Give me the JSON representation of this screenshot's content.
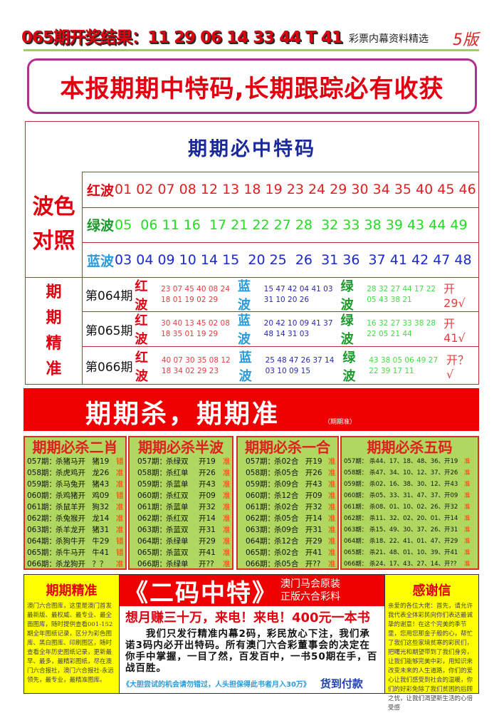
{
  "header": {
    "result": "065期开奖结果：11 29 06 14 33 44 T 41",
    "subtitle": "彩票内幕资料精选",
    "edition": "5版"
  },
  "slogan": "本报期期中特码,长期跟踪必有收获",
  "main": {
    "title": "期期必中特码",
    "wave_label": "波色对照",
    "waves": [
      {
        "label": "红波",
        "numbers": "01 02 07 08 12 13 18 19 23 24 29 30 34 35 40 45 46",
        "label_color": "#e00010",
        "color": "#e02020"
      },
      {
        "label": "绿波",
        "numbers": "05  06 11 16  17 21 22 27 28  32 33 38 39 43 44 49",
        "label_color": "#1a9a2a",
        "color": "#22dd22"
      },
      {
        "label": "蓝波",
        "numbers": "03 04 09 10 14 15  20 25  26  31 36  37 41 42 47 48",
        "label_color": "#2a9ad8",
        "color": "#1a2ad0"
      }
    ],
    "pred_label": "期期精准",
    "predictions": [
      {
        "period": "第064期",
        "red_label": "红波",
        "red": [
          "23 07 45 40 08 24",
          "18 01 19 02 29"
        ],
        "blue_label": "蓝波",
        "blue": [
          "15 47 42 04 41 03",
          "31 10 20 26"
        ],
        "green_label": "绿波",
        "green": [
          "28 32 27 44 17 22",
          "05 43 38 21"
        ],
        "open": "开29√"
      },
      {
        "period": "第065期",
        "red_label": "红波",
        "red": [
          "30 40 13 45 02 08",
          "18 35 01 19 29"
        ],
        "blue_label": "蓝波",
        "blue": [
          "20 42 10 09 41 37",
          "48 14 31 03"
        ],
        "green_label": "绿波",
        "green": [
          "16 32 27 33 38 28",
          "22 05 21 44"
        ],
        "open": "开41√"
      },
      {
        "period": "第066期",
        "red_label": "红波",
        "red": [
          "40 07 30 35 08 12",
          "18 34 02 29 23"
        ],
        "blue_label": "蓝波",
        "blue": [
          "25 48 47 26 37 14",
          "03 10 09 15"
        ],
        "green_label": "绿波",
        "green": [
          "43 38 05 06 49 27",
          "22 39 17 11"
        ],
        "open": "开？√"
      }
    ]
  },
  "banner": {
    "title": "期期杀，期期准",
    "small": "（期期准）",
    "badges": [
      "杀",
      "杀",
      "杀"
    ]
  },
  "boxes": [
    {
      "title": "期期必杀二肖",
      "rows": [
        [
          "057期：",
          "杀猪马开",
          "猪19",
          "错"
        ],
        [
          "058期：",
          "杀虎鸡开",
          "龙26",
          "准"
        ],
        [
          "059期：",
          "杀马兔开",
          "猪43",
          "准"
        ],
        [
          "060期：",
          "杀鸡猪开",
          "鸡09",
          "错"
        ],
        [
          "061期：",
          "杀鼠羊开",
          "狗32",
          "准"
        ],
        [
          "062期：",
          "杀兔猴开",
          "龙14",
          "准"
        ],
        [
          "063期：",
          "杀羊龙开",
          "猪31",
          "准"
        ],
        [
          "064期：",
          "杀狗牛开",
          "牛29",
          "错"
        ],
        [
          "065期：",
          "杀牛马开",
          "牛41",
          "错"
        ],
        [
          "066期：",
          "杀龙狗开",
          "？？",
          "准"
        ]
      ]
    },
    {
      "title": "期期必杀半波",
      "rows": [
        [
          "057期：",
          "杀绿双",
          "开19",
          "准"
        ],
        [
          "058期：",
          "杀红单",
          "开26",
          "准"
        ],
        [
          "059期：",
          "杀蓝单",
          "开43",
          "准"
        ],
        [
          "060期：",
          "杀红双",
          "开09",
          "准"
        ],
        [
          "061期：",
          "杀蓝单",
          "开32",
          "准"
        ],
        [
          "062期：",
          "杀红双",
          "开14",
          "准"
        ],
        [
          "063期：",
          "杀蓝双",
          "开31",
          "准"
        ],
        [
          "064期：",
          "杀绿单",
          "开29",
          "准"
        ],
        [
          "065期：",
          "杀蓝双",
          "开41",
          "准"
        ],
        [
          "066期：",
          "杀绿单",
          "开??",
          "准"
        ]
      ]
    },
    {
      "title": "期期必杀一合",
      "rows": [
        [
          "057期：",
          "杀02合",
          "开19",
          "准"
        ],
        [
          "058期：",
          "杀05合",
          "开26",
          "准"
        ],
        [
          "059期：",
          "杀09合",
          "开43",
          "准"
        ],
        [
          "060期：",
          "杀12合",
          "开09",
          "准"
        ],
        [
          "061期：",
          "杀02合",
          "开32",
          "准"
        ],
        [
          "062期：",
          "杀05合",
          "开14",
          "准"
        ],
        [
          "063期：",
          "杀09合",
          "开31",
          "准"
        ],
        [
          "064期：",
          "杀12合",
          "开29",
          "准"
        ],
        [
          "065期：",
          "杀02合",
          "开41",
          "准"
        ],
        [
          "066期：",
          "杀05合",
          "开??",
          "准"
        ]
      ]
    },
    {
      "title": "期期必杀五码",
      "rows": [
        [
          "057期：",
          "杀44、17、18、48、36、",
          "开19",
          "准"
        ],
        [
          "058期：",
          "杀47、34、10、12、37、",
          "开26",
          "准"
        ],
        [
          "059期：",
          "杀02、16、38、30、12、",
          "开43",
          "准"
        ],
        [
          "060期：",
          "杀05、33、31、47、37、",
          "开09",
          "准"
        ],
        [
          "061期：",
          "杀08、01、10、02、26、",
          "开32",
          "准"
        ],
        [
          "062期：",
          "杀11、32、02、20、01、",
          "开14",
          "准"
        ],
        [
          "063期：",
          "杀15、49、30、37、26、",
          "开31",
          "准"
        ],
        [
          "064期：",
          "杀18、22、41、01、47、",
          "开29",
          "准"
        ],
        [
          "065期：",
          "杀21、48、01、10、39、",
          "开41",
          "准"
        ],
        [
          "066期：",
          "杀24、17、43、27、14、",
          "开??",
          "准"
        ]
      ]
    }
  ],
  "bottom": {
    "left": {
      "title": "期期精准",
      "text": "澳门六合图库，这里是澳门首发最新版、最权威、最专业、最全面图库，随时提供查看001-152期全年图纸记录，区分为彩色图库、黑白图库、印刷图区，随时查看全年历史图纸记录，更新最早、最多，最精彩图纸，尽在澳门六合报社，澳门六合报社-永远领先，最专业，最精准图库。"
    },
    "middle": {
      "title": "《二码中特》",
      "side1": "澳门马会原装",
      "side2": "正版六合彩料",
      "sub": "想月赚三十万，来电！来电！400元一本书",
      "body": "　　我们只发行精准内幕2码，彩民放心下注，我们承诺3码内必开出特码。所有澳门六合彩董事会的决定在你手中掌握，一目了然，百发百中，一书50期在手，百战百胜。",
      "note": "《大胆尝试的机会请勿错过，人头担保得此书者月入30万》",
      "cod": "货到付款"
    },
    "right": {
      "title": "感谢信",
      "text": "亲爱的各位大佬：首先，请允许我代表全体彩民向你们表达最诚挚的谢意！在这个完美的季节里，您用您那金子般的心，帮忙了我们这些家境贫寒的彩民们，把曙光和期望带到了我们身旁，让我们能够完美中彩，用知识来改变未来的人生道路，你们的爱心让我们感受到社会的温暖，你们的好彩免除了我们贫困的后顾之忧，让我们渴望新生活的心倍受感"
    }
  }
}
